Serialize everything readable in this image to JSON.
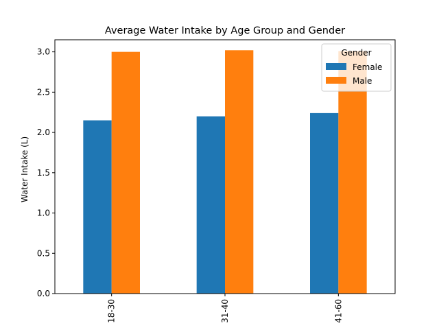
{
  "chart_data": {
    "type": "bar",
    "title": "Average Water Intake by Age Group and Gender",
    "xlabel": "",
    "ylabel": "Water Intake (L)",
    "categories": [
      "18-30",
      "31-40",
      "41-60"
    ],
    "series": [
      {
        "name": "Female",
        "values": [
          2.15,
          2.2,
          2.24
        ],
        "color": "#1f77b4"
      },
      {
        "name": "Male",
        "values": [
          3.0,
          3.02,
          3.01
        ],
        "color": "#ff7f0e"
      }
    ],
    "ylim": [
      0,
      3.15
    ],
    "yticks": [
      "0.0",
      "0.5",
      "1.0",
      "1.5",
      "2.0",
      "2.5",
      "3.0"
    ],
    "legend": {
      "title": "Gender",
      "placement": "top-right"
    },
    "grid": false
  }
}
